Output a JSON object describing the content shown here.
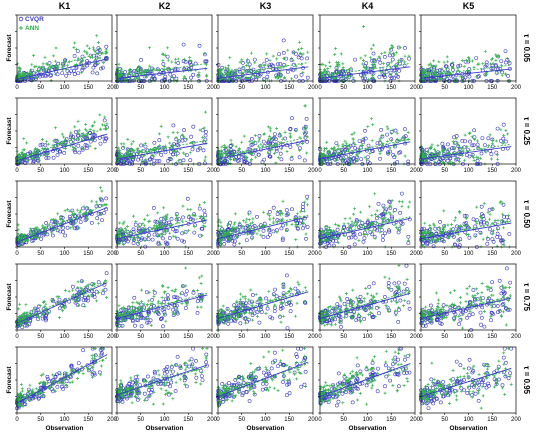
{
  "figure": {
    "column_titles": [
      "K1",
      "K2",
      "K3",
      "K4",
      "K5"
    ],
    "row_labels": [
      "τ = 0.05",
      "τ = 0.25",
      "τ = 0.50",
      "τ = 0.75",
      "τ = 0.95"
    ],
    "xlabel": "Observation",
    "ylabel": "Forecast",
    "legend": [
      {
        "name": "CVQR",
        "color": "#3a3ac8",
        "marker": "open-circle"
      },
      {
        "name": "ANN",
        "color": "#2fb24a",
        "marker": "plus"
      }
    ]
  },
  "chart_data": {
    "type": "scatter",
    "layout": "grid 5 rows x 5 columns",
    "xlim": [
      0,
      200
    ],
    "ylim": [
      0,
      200
    ],
    "xticks": [
      0,
      50,
      100,
      150,
      200
    ],
    "yticks": [
      0,
      50,
      100,
      150,
      200
    ],
    "series_style": {
      "CVQR": {
        "color": "#3a3ac8",
        "marker": "open-circle",
        "fit": "solid line"
      },
      "ANN": {
        "color": "#2fb24a",
        "marker": "plus",
        "fit": "dashed line"
      }
    },
    "note": "Each panel shows a dense scatter of Forecast vs Observation for both models with fitted trend lines; individual points cannot be read exactly. Approximate fitted-line endpoints (y at x=0 and x=200) are listed per panel.",
    "panels": [
      {
        "row": "τ = 0.05",
        "col": "K1",
        "CVQR_fit": [
          5,
          70
        ],
        "ANN_fit": [
          12,
          95
        ]
      },
      {
        "row": "τ = 0.05",
        "col": "K2",
        "CVQR_fit": [
          8,
          40
        ],
        "ANN_fit": [
          15,
          55
        ]
      },
      {
        "row": "τ = 0.05",
        "col": "K3",
        "CVQR_fit": [
          8,
          45
        ],
        "ANN_fit": [
          15,
          58
        ]
      },
      {
        "row": "τ = 0.05",
        "col": "K4",
        "CVQR_fit": [
          8,
          45
        ],
        "ANN_fit": [
          15,
          55
        ]
      },
      {
        "row": "τ = 0.05",
        "col": "K5",
        "CVQR_fit": [
          8,
          38
        ],
        "ANN_fit": [
          15,
          50
        ]
      },
      {
        "row": "τ = 0.25",
        "col": "K1",
        "CVQR_fit": [
          10,
          95
        ],
        "ANN_fit": [
          15,
          115
        ]
      },
      {
        "row": "τ = 0.25",
        "col": "K2",
        "CVQR_fit": [
          15,
          65
        ],
        "ANN_fit": [
          20,
          75
        ]
      },
      {
        "row": "τ = 0.25",
        "col": "K3",
        "CVQR_fit": [
          15,
          75
        ],
        "ANN_fit": [
          20,
          85
        ]
      },
      {
        "row": "τ = 0.25",
        "col": "K4",
        "CVQR_fit": [
          15,
          70
        ],
        "ANN_fit": [
          20,
          78
        ]
      },
      {
        "row": "τ = 0.25",
        "col": "K5",
        "CVQR_fit": [
          15,
          55
        ],
        "ANN_fit": [
          20,
          62
        ]
      },
      {
        "row": "τ = 0.50",
        "col": "K1",
        "CVQR_fit": [
          15,
          125
        ],
        "ANN_fit": [
          20,
          135
        ]
      },
      {
        "row": "τ = 0.50",
        "col": "K2",
        "CVQR_fit": [
          25,
          85
        ],
        "ANN_fit": [
          30,
          95
        ]
      },
      {
        "row": "τ = 0.50",
        "col": "K3",
        "CVQR_fit": [
          25,
          95
        ],
        "ANN_fit": [
          30,
          100
        ]
      },
      {
        "row": "τ = 0.50",
        "col": "K4",
        "CVQR_fit": [
          25,
          90
        ],
        "ANN_fit": [
          30,
          95
        ]
      },
      {
        "row": "τ = 0.50",
        "col": "K5",
        "CVQR_fit": [
          25,
          75
        ],
        "ANN_fit": [
          30,
          80
        ]
      },
      {
        "row": "τ = 0.75",
        "col": "K1",
        "CVQR_fit": [
          20,
          150
        ],
        "ANN_fit": [
          25,
          155
        ]
      },
      {
        "row": "τ = 0.75",
        "col": "K2",
        "CVQR_fit": [
          35,
          110
        ],
        "ANN_fit": [
          40,
          115
        ]
      },
      {
        "row": "τ = 0.75",
        "col": "K3",
        "CVQR_fit": [
          35,
          120
        ],
        "ANN_fit": [
          40,
          125
        ]
      },
      {
        "row": "τ = 0.75",
        "col": "K4",
        "CVQR_fit": [
          35,
          115
        ],
        "ANN_fit": [
          40,
          120
        ]
      },
      {
        "row": "τ = 0.75",
        "col": "K5",
        "CVQR_fit": [
          35,
          100
        ],
        "ANN_fit": [
          40,
          105
        ]
      },
      {
        "row": "τ = 0.95",
        "col": "K1",
        "CVQR_fit": [
          30,
          185
        ],
        "ANN_fit": [
          35,
          175
        ]
      },
      {
        "row": "τ = 0.95",
        "col": "K2",
        "CVQR_fit": [
          55,
          150
        ],
        "ANN_fit": [
          55,
          145
        ]
      },
      {
        "row": "τ = 0.95",
        "col": "K3",
        "CVQR_fit": [
          50,
          160
        ],
        "ANN_fit": [
          55,
          155
        ]
      },
      {
        "row": "τ = 0.95",
        "col": "K4",
        "CVQR_fit": [
          50,
          155
        ],
        "ANN_fit": [
          55,
          150
        ]
      },
      {
        "row": "τ = 0.95",
        "col": "K5",
        "CVQR_fit": [
          50,
          140
        ],
        "ANN_fit": [
          55,
          135
        ]
      }
    ]
  }
}
